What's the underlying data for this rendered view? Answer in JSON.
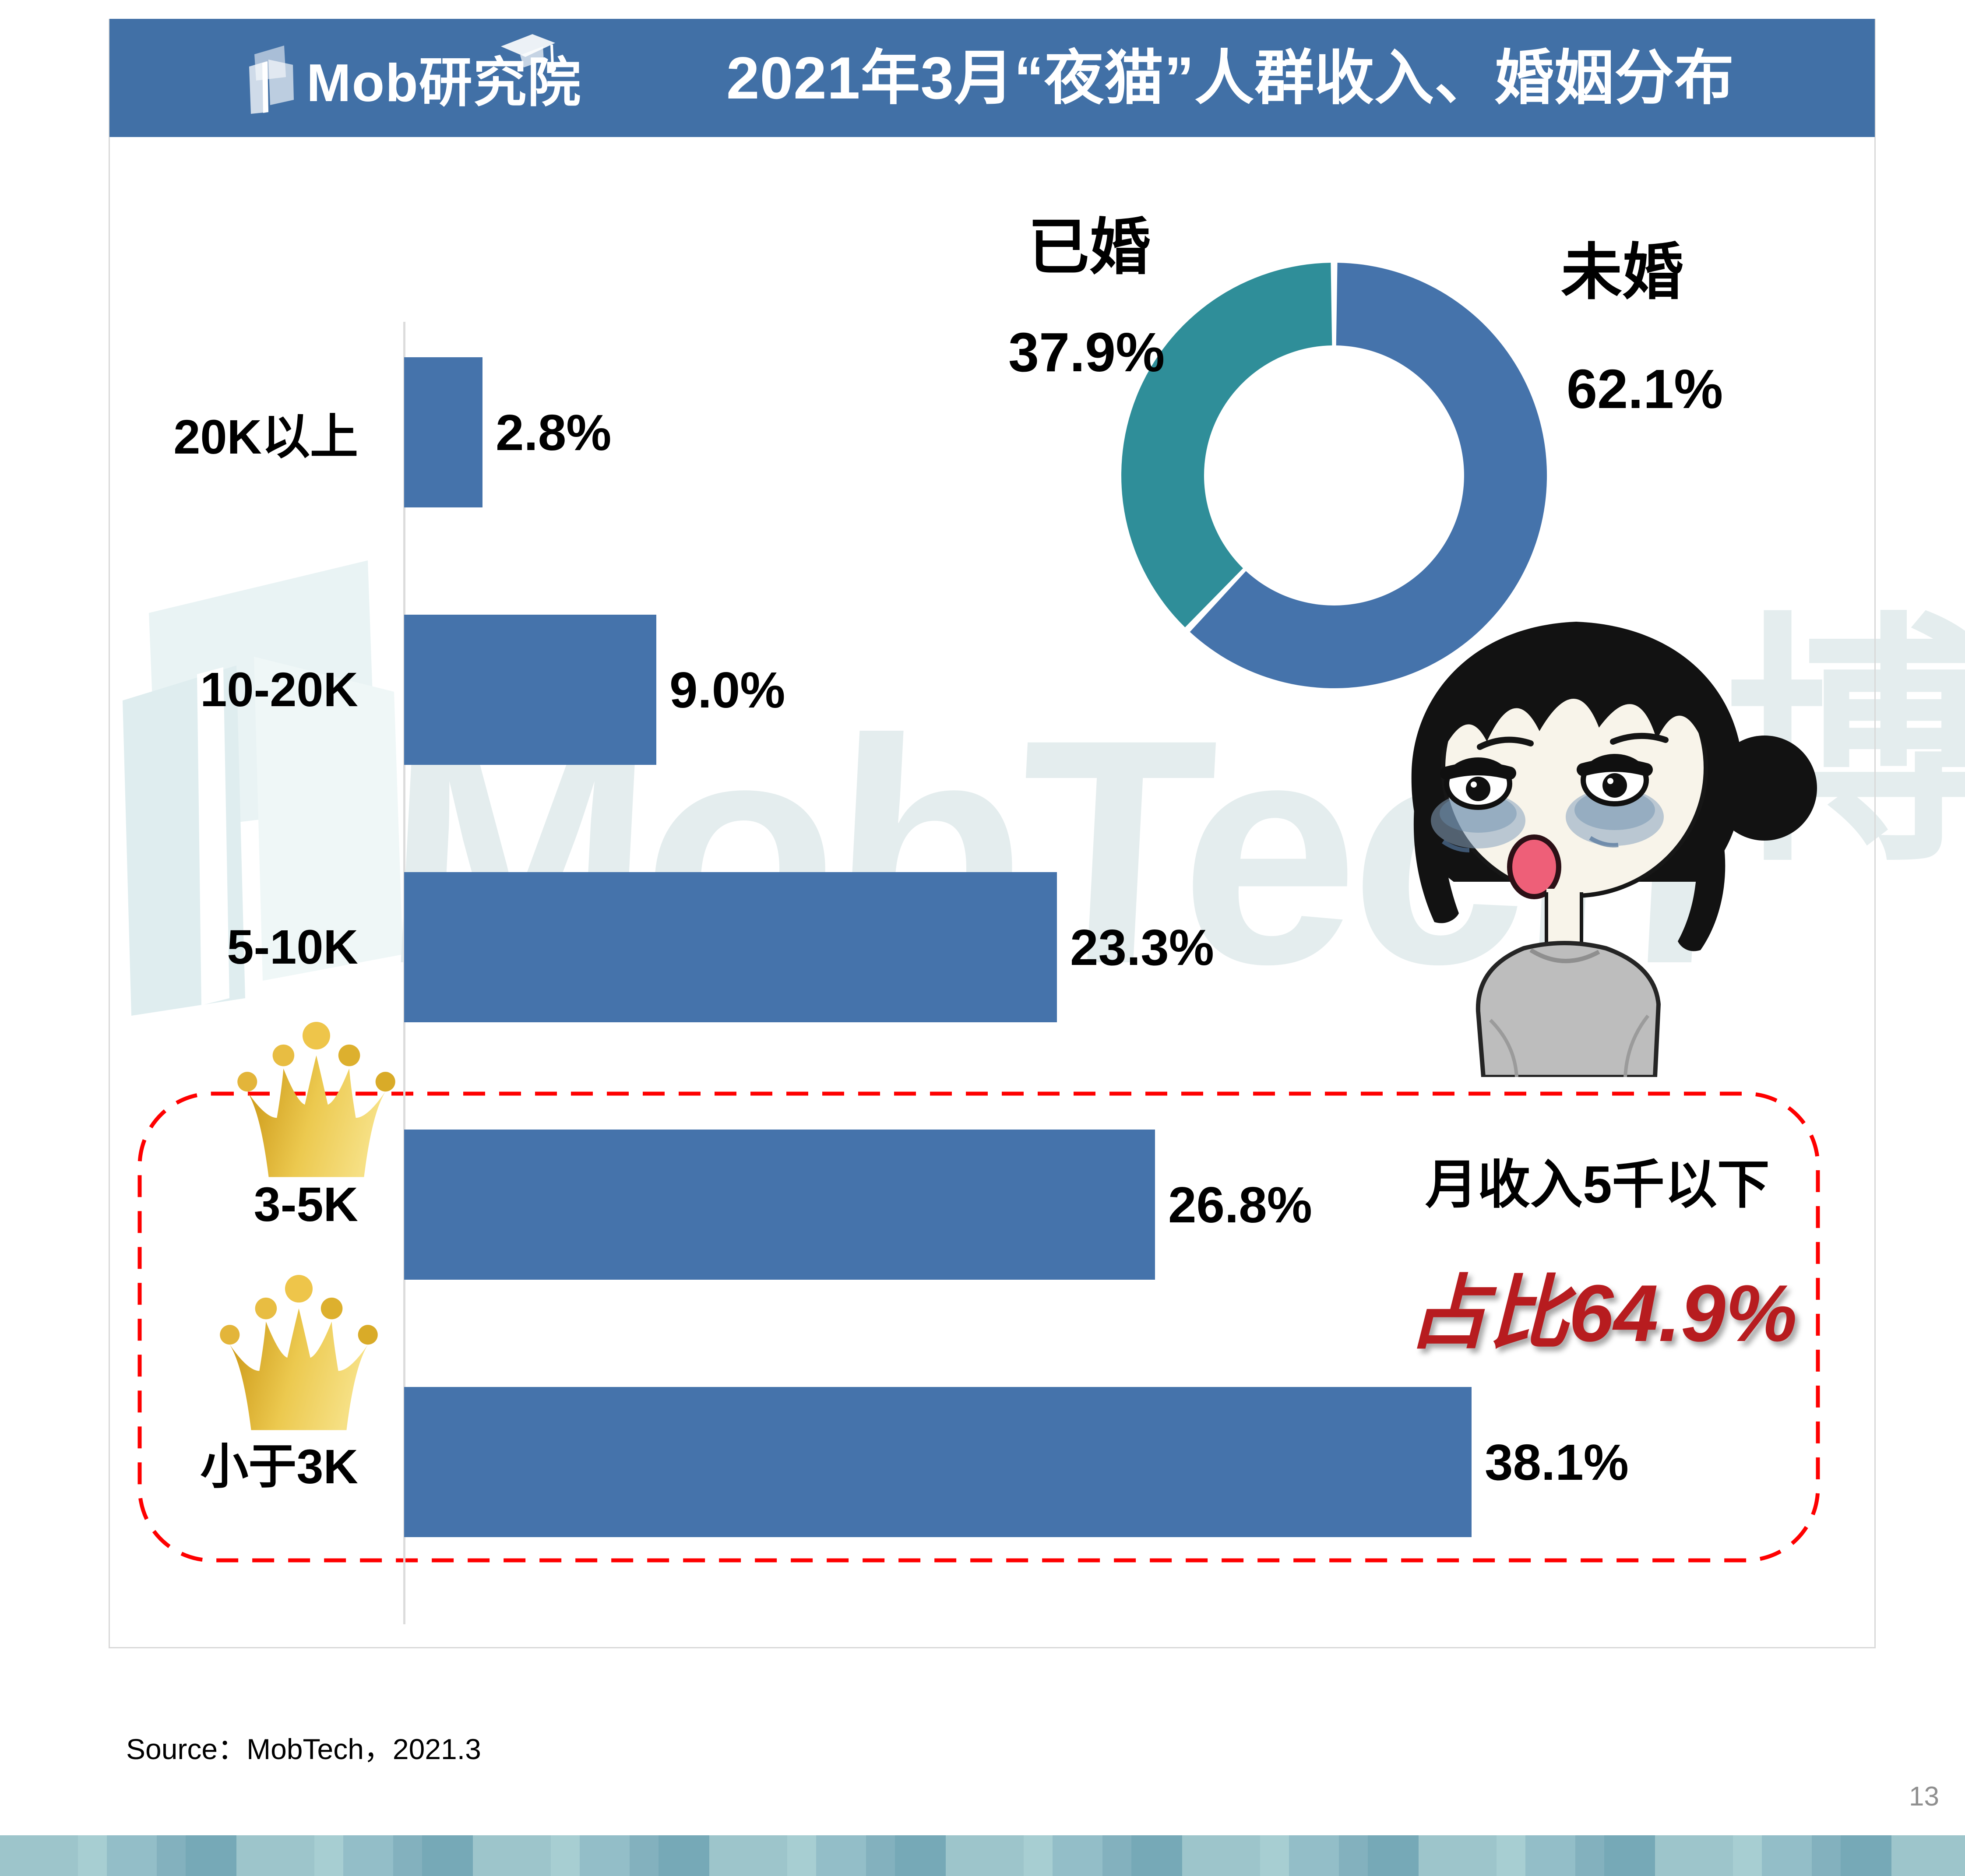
{
  "header": {
    "logo_text": "Mob研究院",
    "title": "2021年3月“夜猫”人群收入、婚姻分布"
  },
  "chart_data": [
    {
      "type": "bar",
      "orientation": "horizontal",
      "categories": [
        "20K以上",
        "10-20K",
        "5-10K",
        "3-5K",
        "小于3K"
      ],
      "values": [
        2.8,
        9.0,
        23.3,
        26.8,
        38.1
      ],
      "value_labels": [
        "2.8%",
        "9.0%",
        "23.3%",
        "26.8%",
        "38.1%"
      ],
      "unit": "%",
      "xlim": [
        0,
        40
      ],
      "bar_color": "#4573ab",
      "grid": false,
      "crowned_categories": [
        "3-5K",
        "小于3K"
      ]
    },
    {
      "type": "pie",
      "donut": true,
      "start_angle_deg": 0,
      "direction": "clockwise",
      "slices": [
        {
          "label": "未婚",
          "value": 62.1,
          "display": "62.1%",
          "color": "#4573ab"
        },
        {
          "label": "已婚",
          "value": 37.9,
          "display": "37.9%",
          "color": "#2f8e99"
        }
      ]
    }
  ],
  "annotation": {
    "line1": "月收入5千以下",
    "line2": "占比64.9%",
    "box_color": "#fe0000",
    "text_color": "#b71c1f"
  },
  "watermark": {
    "text": "MobTech",
    "cjk": "博"
  },
  "source": "Source：MobTech，2021.3",
  "page_number": "13",
  "colors": {
    "header_blue": "#4170a6",
    "bar_blue": "#4573ab",
    "married_teal": "#2f8e99",
    "card_border": "#d9d9d9",
    "crown_gold_dark": "#c89210",
    "crown_gold_light": "#f6e084",
    "page_number_gray": "#8f8f8f"
  },
  "footer_strip": {
    "pattern": [
      {
        "w": 178,
        "c": "#9dc5cb"
      },
      {
        "w": 66,
        "c": "#a7ced2"
      },
      {
        "w": 114,
        "c": "#93bec8"
      },
      {
        "w": 66,
        "c": "#83b1be"
      },
      {
        "w": 116,
        "c": "#76a9b7"
      }
    ]
  }
}
